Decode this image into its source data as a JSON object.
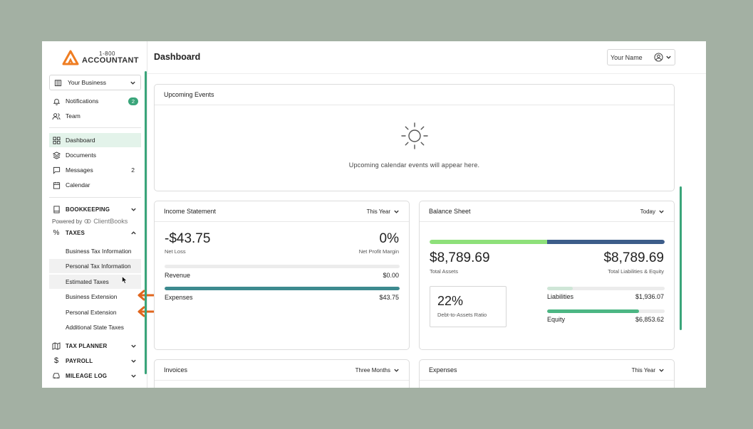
{
  "sidebar": {
    "logo": {
      "small": "1-800",
      "big": "ACCOUNTANT"
    },
    "business_select": {
      "label": "Your Business"
    },
    "notifications": {
      "label": "Notifications",
      "badge": "2"
    },
    "team": {
      "label": "Team"
    },
    "dashboard": {
      "label": "Dashboard"
    },
    "documents": {
      "label": "Documents"
    },
    "messages": {
      "label": "Messages",
      "count": "2"
    },
    "calendar": {
      "label": "Calendar"
    },
    "bookkeeping": {
      "label": "BOOKKEEPING"
    },
    "powered_by": {
      "prefix": "Powered by",
      "brand": "ClientBooks"
    },
    "taxes": {
      "label": "TAXES"
    },
    "taxes_items": [
      "Business Tax Information",
      "Personal Tax Information",
      "Estimated Taxes",
      "Business Extension",
      "Personal Extension",
      "Additional State Taxes"
    ],
    "tax_planner": {
      "label": "TAX PLANNER"
    },
    "payroll": {
      "label": "PAYROLL"
    },
    "mileage_log": {
      "label": "MILEAGE LOG"
    }
  },
  "header": {
    "title": "Dashboard",
    "user_menu": "Your Name"
  },
  "upcoming_events": {
    "title": "Upcoming Events",
    "empty_text": "Upcoming calendar events will appear here."
  },
  "income_statement": {
    "title": "Income Statement",
    "period": "This Year",
    "net_loss_value": "-$43.75",
    "net_loss_label": "Net Loss",
    "margin_value": "0%",
    "margin_label": "Net Profit Margin",
    "revenue_label": "Revenue",
    "revenue_value": "$0.00",
    "revenue_fraction": 0,
    "expenses_label": "Expenses",
    "expenses_value": "$43.75",
    "expenses_fraction": 1
  },
  "balance_sheet": {
    "title": "Balance Sheet",
    "period": "Today",
    "assets_value": "$8,789.69",
    "assets_label": "Total Assets",
    "liab_equity_value": "$8,789.69",
    "liab_equity_label": "Total Liabilities & Equity",
    "ratio_value": "22%",
    "ratio_label": "Debt-to-Assets Ratio",
    "liabilities_label": "Liabilities",
    "liabilities_value": "$1,936.07",
    "liabilities_fraction": 0.22,
    "equity_label": "Equity",
    "equity_value": "$6,853.62",
    "equity_fraction": 0.78,
    "assets_split_fraction": 0.5,
    "colors": {
      "assets": "#8ee07a",
      "liabilities": "#3d5d8a",
      "equity": "#4cb683",
      "expense": "#3d8a8f"
    }
  },
  "invoices": {
    "title": "Invoices",
    "period": "Three Months"
  },
  "expenses_card": {
    "title": "Expenses",
    "period": "This Year"
  }
}
